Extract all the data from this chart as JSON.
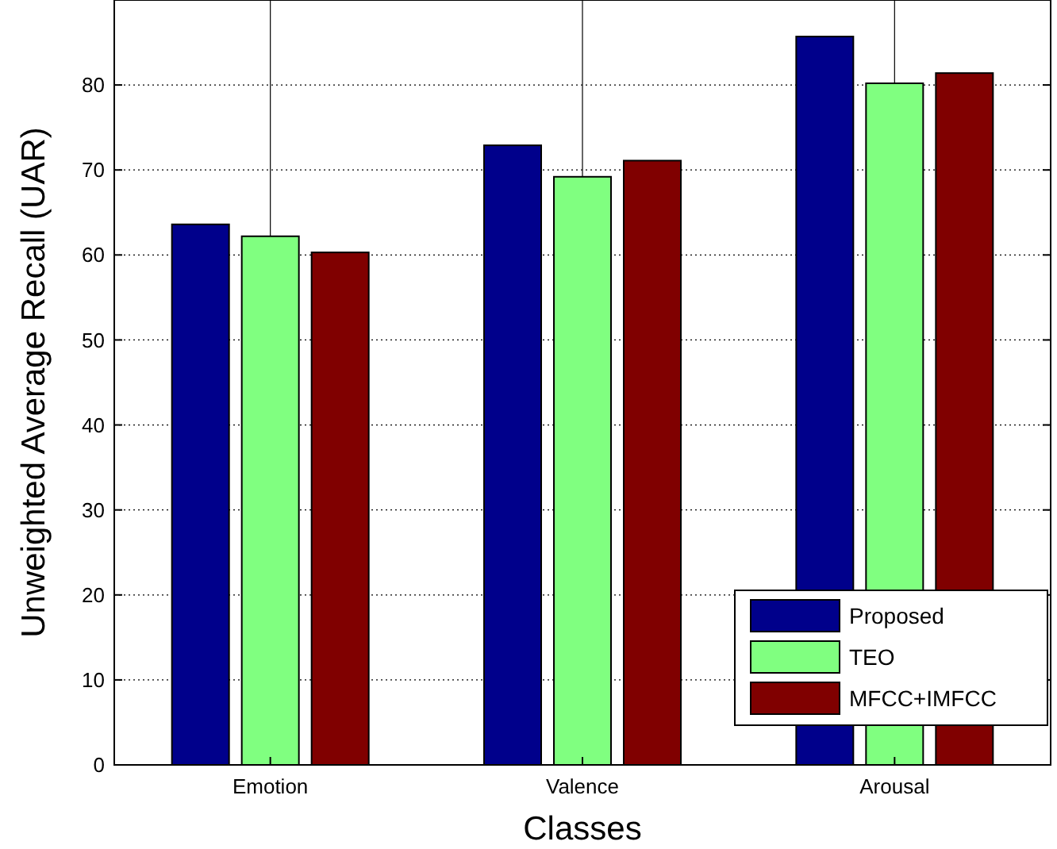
{
  "chart_data": {
    "type": "bar",
    "xlabel": "Classes",
    "ylabel": "Unweighted Average Recall (UAR)",
    "categories": [
      "Emotion",
      "Valence",
      "Arousal"
    ],
    "series": [
      {
        "name": "Proposed",
        "color": "#00008b",
        "values": [
          63.6,
          72.9,
          85.7
        ]
      },
      {
        "name": "TEO",
        "color": "#80ff80",
        "values": [
          62.2,
          69.2,
          80.2
        ]
      },
      {
        "name": "MFCC+IMFCC",
        "color": "#800000",
        "values": [
          60.3,
          71.1,
          81.4
        ]
      }
    ],
    "ylim": [
      0,
      90
    ],
    "yticks": [
      0,
      10,
      20,
      30,
      40,
      50,
      60,
      70,
      80
    ],
    "grid": true,
    "legend": "bottom right"
  }
}
